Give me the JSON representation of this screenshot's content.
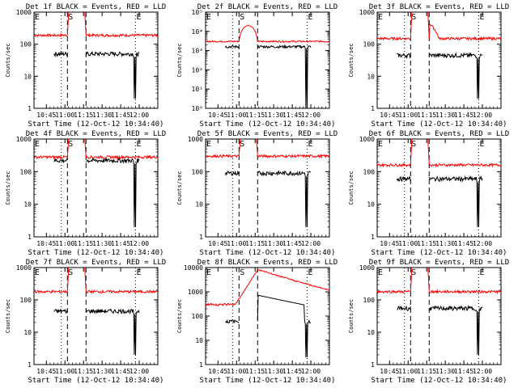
{
  "chart_data": [
    {
      "type": "line",
      "title": "Det 1f BLACK = Events, RED = LLD",
      "xlabel": "Start Time (12-Oct-12 10:34:40)",
      "ylabel": "Counts/sec",
      "y_scale": "log",
      "ylim": [
        1,
        1000
      ],
      "x_tick_labels": [
        "10:45",
        "11:00",
        "11:15",
        "11:30",
        "11:45",
        "12:00"
      ],
      "x_ticks_minutes": [
        10,
        25,
        40,
        55,
        70,
        85
      ],
      "xlim_minutes": [
        0,
        100
      ],
      "y_tick_labels": [
        "1",
        "10",
        "100",
        "1000"
      ],
      "y_tick_values": [
        1,
        10,
        100,
        1000
      ],
      "markers": [
        {
          "label": "E",
          "x_minutes": 0,
          "style": "dotted"
        },
        {
          "label": "",
          "x_minutes": 22,
          "style": "dotted"
        },
        {
          "label": "S",
          "x_minutes": 27,
          "style": "dashed"
        },
        {
          "label": "",
          "x_minutes": 42,
          "style": "dashed"
        },
        {
          "label": "E",
          "x_minutes": 82,
          "style": "dotted"
        }
      ],
      "series": [
        {
          "color": "#ff0000",
          "level": 190,
          "gap": [
            27,
            42
          ],
          "spike": 1000,
          "ramp": false
        },
        {
          "color": "#000000",
          "level": 50,
          "start": 16,
          "end": 85,
          "drop_at": 80,
          "drop_min": 2,
          "gap": [
            27,
            42
          ]
        }
      ]
    },
    {
      "type": "line",
      "title": "Det 2f BLACK = Events, RED = LLD",
      "xlabel": "Start Time (12-Oct-12 10:34:40)",
      "ylabel": "Counts/sec",
      "y_scale": "log",
      "ylim": [
        1,
        100000
      ],
      "x_tick_labels": [
        "10:45",
        "11:00",
        "11:15",
        "11:30",
        "11:45",
        "12:00"
      ],
      "x_ticks_minutes": [
        10,
        25,
        40,
        55,
        70,
        85
      ],
      "xlim_minutes": [
        0,
        100
      ],
      "y_tick_labels": [
        "10⁰",
        "10¹",
        "10²",
        "10³",
        "10⁴",
        "10⁵"
      ],
      "y_tick_values": [
        1,
        10,
        100,
        1000,
        10000,
        100000
      ],
      "markers": [
        {
          "label": "E",
          "x_minutes": 0,
          "style": "dotted"
        },
        {
          "label": "",
          "x_minutes": 22,
          "style": "dotted"
        },
        {
          "label": "S",
          "x_minutes": 27,
          "style": "dashed"
        },
        {
          "label": "",
          "x_minutes": 42,
          "style": "dashed"
        },
        {
          "label": "E",
          "x_minutes": 82,
          "style": "dotted"
        }
      ],
      "series": [
        {
          "color": "#ff0000",
          "level": 3000,
          "bump": {
            "from": 27,
            "to": 42,
            "peak": 20000
          }
        },
        {
          "color": "#000000",
          "level": 1600,
          "start": 16,
          "end": 85,
          "drop_at": 80,
          "drop_min": 1,
          "gap": [
            27,
            42
          ]
        }
      ]
    },
    {
      "type": "line",
      "title": "Det 3f BLACK = Events, RED = LLD",
      "xlabel": "Start Time (12-Oct-12 10:34:40)",
      "ylabel": "Counts/sec",
      "y_scale": "log",
      "ylim": [
        1,
        1000
      ],
      "x_tick_labels": [
        "10:45",
        "11:00",
        "11:15",
        "11:30",
        "11:45",
        "12:00"
      ],
      "x_ticks_minutes": [
        10,
        25,
        40,
        55,
        70,
        85
      ],
      "xlim_minutes": [
        0,
        100
      ],
      "y_tick_labels": [
        "1",
        "10",
        "100",
        "1000"
      ],
      "y_tick_values": [
        1,
        10,
        100,
        1000
      ],
      "markers": [
        {
          "label": "E",
          "x_minutes": 0,
          "style": "dotted"
        },
        {
          "label": "",
          "x_minutes": 22,
          "style": "dotted"
        },
        {
          "label": "S",
          "x_minutes": 27,
          "style": "dashed"
        },
        {
          "label": "",
          "x_minutes": 42,
          "style": "dashed"
        },
        {
          "label": "E",
          "x_minutes": 82,
          "style": "dotted"
        }
      ],
      "series": [
        {
          "color": "#ff0000",
          "level": 150,
          "gap": [
            27,
            42
          ],
          "spike": 1000,
          "decay": true
        },
        {
          "color": "#000000",
          "level": 45,
          "start": 16,
          "end": 85,
          "drop_at": 80,
          "drop_min": 2,
          "gap": [
            27,
            42
          ]
        }
      ]
    },
    {
      "type": "line",
      "title": "Det 4f BLACK = Events, RED = LLD",
      "xlabel": "Start Time (12-Oct-12 10:34:40)",
      "ylabel": "Counts/sec",
      "y_scale": "log",
      "ylim": [
        1,
        1000
      ],
      "x_tick_labels": [
        "10:45",
        "11:00",
        "11:15",
        "11:30",
        "11:45",
        "12:00"
      ],
      "x_ticks_minutes": [
        10,
        25,
        40,
        55,
        70,
        85
      ],
      "xlim_minutes": [
        0,
        100
      ],
      "y_tick_labels": [
        "1",
        "10",
        "100",
        "1000"
      ],
      "y_tick_values": [
        1,
        10,
        100,
        1000
      ],
      "markers": [
        {
          "label": "E",
          "x_minutes": 0,
          "style": "dotted"
        },
        {
          "label": "",
          "x_minutes": 22,
          "style": "dotted"
        },
        {
          "label": "S",
          "x_minutes": 27,
          "style": "dashed"
        },
        {
          "label": "",
          "x_minutes": 42,
          "style": "dashed"
        },
        {
          "label": "E",
          "x_minutes": 82,
          "style": "dotted"
        }
      ],
      "series": [
        {
          "color": "#ff0000",
          "level": 280,
          "gap": [
            27,
            42
          ],
          "spike": 1000
        },
        {
          "color": "#000000",
          "level": 220,
          "start": 16,
          "end": 85,
          "drop_at": 80,
          "drop_min": 2,
          "gap": [
            27,
            42
          ]
        }
      ]
    },
    {
      "type": "line",
      "title": "Det 5f BLACK = Events, RED = LLD",
      "xlabel": "Start Time (12-Oct-12 10:34:40)",
      "ylabel": "Counts/sec",
      "y_scale": "log",
      "ylim": [
        1,
        1000
      ],
      "x_tick_labels": [
        "10:45",
        "11:00",
        "11:15",
        "11:30",
        "11:45",
        "12:00"
      ],
      "x_ticks_minutes": [
        10,
        25,
        40,
        55,
        70,
        85
      ],
      "xlim_minutes": [
        0,
        100
      ],
      "y_tick_labels": [
        "1",
        "10",
        "100",
        "1000"
      ],
      "y_tick_values": [
        1,
        10,
        100,
        1000
      ],
      "markers": [
        {
          "label": "E",
          "x_minutes": 0,
          "style": "dotted"
        },
        {
          "label": "",
          "x_minutes": 22,
          "style": "dotted"
        },
        {
          "label": "S",
          "x_minutes": 27,
          "style": "dashed"
        },
        {
          "label": "",
          "x_minutes": 42,
          "style": "dashed"
        },
        {
          "label": "E",
          "x_minutes": 82,
          "style": "dotted"
        }
      ],
      "series": [
        {
          "color": "#ff0000",
          "level": 300,
          "gap": [
            27,
            42
          ],
          "spike": 1000
        },
        {
          "color": "#000000",
          "level": 90,
          "start": 16,
          "end": 85,
          "drop_at": 80,
          "drop_min": 2,
          "gap": [
            27,
            42
          ]
        }
      ]
    },
    {
      "type": "line",
      "title": "Det 6f BLACK = Events, RED = LLD",
      "xlabel": "Start Time (12-Oct-12 10:34:40)",
      "ylabel": "Counts/sec",
      "y_scale": "log",
      "ylim": [
        1,
        1000
      ],
      "x_tick_labels": [
        "10:45",
        "11:00",
        "11:15",
        "11:30",
        "11:45",
        "12:00"
      ],
      "x_ticks_minutes": [
        10,
        25,
        40,
        55,
        70,
        85
      ],
      "xlim_minutes": [
        0,
        100
      ],
      "y_tick_labels": [
        "1",
        "10",
        "100",
        "1000"
      ],
      "y_tick_values": [
        1,
        10,
        100,
        1000
      ],
      "markers": [
        {
          "label": "E",
          "x_minutes": 0,
          "style": "dotted"
        },
        {
          "label": "",
          "x_minutes": 22,
          "style": "dotted"
        },
        {
          "label": "S",
          "x_minutes": 27,
          "style": "dashed"
        },
        {
          "label": "",
          "x_minutes": 42,
          "style": "dashed"
        },
        {
          "label": "E",
          "x_minutes": 82,
          "style": "dotted"
        }
      ],
      "series": [
        {
          "color": "#ff0000",
          "level": 160,
          "gap": [
            27,
            42
          ],
          "spike": 1000
        },
        {
          "color": "#000000",
          "level": 60,
          "start": 16,
          "end": 85,
          "drop_at": 80,
          "drop_min": 2,
          "gap": [
            27,
            42
          ]
        }
      ]
    },
    {
      "type": "line",
      "title": "Det 7f BLACK = Events, RED = LLD",
      "xlabel": "Start Time (12-Oct-12 10:34:40)",
      "ylabel": "Counts/sec",
      "y_scale": "log",
      "ylim": [
        1,
        1000
      ],
      "x_tick_labels": [
        "10:45",
        "11:00",
        "11:15",
        "11:30",
        "11:45",
        "12:00"
      ],
      "x_ticks_minutes": [
        10,
        25,
        40,
        55,
        70,
        85
      ],
      "xlim_minutes": [
        0,
        100
      ],
      "y_tick_labels": [
        "1",
        "10",
        "100",
        "1000"
      ],
      "y_tick_values": [
        1,
        10,
        100,
        1000
      ],
      "markers": [
        {
          "label": "E",
          "x_minutes": 0,
          "style": "dotted"
        },
        {
          "label": "",
          "x_minutes": 22,
          "style": "dotted"
        },
        {
          "label": "S",
          "x_minutes": 27,
          "style": "dashed"
        },
        {
          "label": "",
          "x_minutes": 42,
          "style": "dashed"
        },
        {
          "label": "E",
          "x_minutes": 82,
          "style": "dotted"
        }
      ],
      "series": [
        {
          "color": "#ff0000",
          "level": 180,
          "gap": [
            27,
            42
          ],
          "spike": 1000
        },
        {
          "color": "#000000",
          "level": 45,
          "start": 16,
          "end": 85,
          "drop_at": 80,
          "drop_min": 2,
          "gap": [
            27,
            42
          ]
        }
      ]
    },
    {
      "type": "line",
      "title": "Det 8f BLACK = Events, RED = LLD",
      "xlabel": "Start Time (12-Oct-12 10:34:40)",
      "ylabel": "Counts/sec",
      "y_scale": "log",
      "ylim": [
        1,
        10000
      ],
      "x_tick_labels": [
        "10:45",
        "11:00",
        "11:15",
        "11:30",
        "11:45",
        "12:00"
      ],
      "x_ticks_minutes": [
        10,
        25,
        40,
        55,
        70,
        85
      ],
      "xlim_minutes": [
        0,
        100
      ],
      "y_tick_labels": [
        "1",
        "10",
        "100",
        "1000",
        "10000"
      ],
      "y_tick_values": [
        1,
        10,
        100,
        1000,
        10000
      ],
      "markers": [
        {
          "label": "E",
          "x_minutes": 0,
          "style": "dotted"
        },
        {
          "label": "",
          "x_minutes": 22,
          "style": "dotted"
        },
        {
          "label": "S",
          "x_minutes": 27,
          "style": "dashed"
        },
        {
          "label": "",
          "x_minutes": 42,
          "style": "dashed"
        },
        {
          "label": "E",
          "x_minutes": 82,
          "style": "dotted"
        }
      ],
      "series": [
        {
          "color": "#ff0000",
          "level": 300,
          "ramp": true,
          "peak": 8000,
          "gap_free": true
        },
        {
          "color": "#000000",
          "level": 60,
          "start": 16,
          "end": 85,
          "drop_at": 80,
          "drop_min": 2,
          "gap": [
            27,
            42
          ],
          "black_high": 700
        }
      ]
    },
    {
      "type": "line",
      "title": "Det 9f BLACK = Events, RED = LLD",
      "xlabel": "Start Time (12-Oct-12 10:34:40)",
      "ylabel": "Counts/sec",
      "y_scale": "log",
      "ylim": [
        1,
        1000
      ],
      "x_tick_labels": [
        "10:45",
        "11:00",
        "11:15",
        "11:30",
        "11:45",
        "12:00"
      ],
      "x_ticks_minutes": [
        10,
        25,
        40,
        55,
        70,
        85
      ],
      "xlim_minutes": [
        0,
        100
      ],
      "y_tick_labels": [
        "1",
        "10",
        "100",
        "1000"
      ],
      "y_tick_values": [
        1,
        10,
        100,
        1000
      ],
      "markers": [
        {
          "label": "E",
          "x_minutes": 0,
          "style": "dotted"
        },
        {
          "label": "",
          "x_minutes": 22,
          "style": "dotted"
        },
        {
          "label": "S",
          "x_minutes": 27,
          "style": "dashed"
        },
        {
          "label": "",
          "x_minutes": 42,
          "style": "dashed"
        },
        {
          "label": "E",
          "x_minutes": 82,
          "style": "dotted"
        }
      ],
      "series": [
        {
          "color": "#ff0000",
          "level": 180,
          "gap": [
            27,
            42
          ],
          "spike": 1000
        },
        {
          "color": "#000000",
          "level": 55,
          "start": 16,
          "end": 85,
          "drop_at": 80,
          "drop_min": 2,
          "gap": [
            27,
            42
          ]
        }
      ]
    }
  ]
}
